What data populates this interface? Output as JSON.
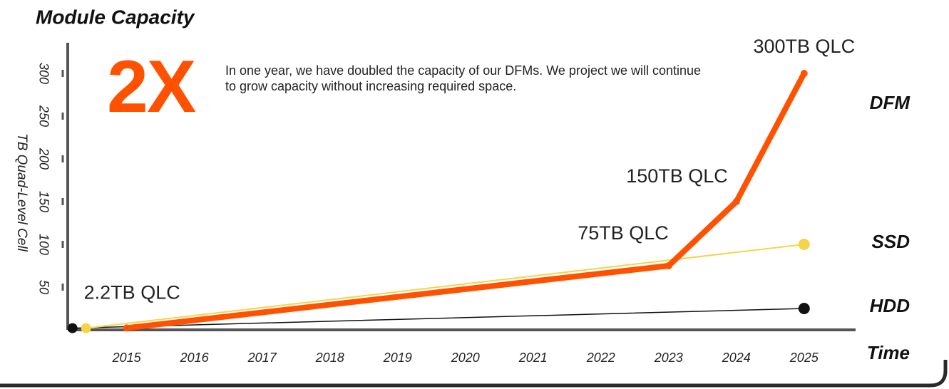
{
  "chart_data": {
    "type": "line",
    "title": "Module Capacity",
    "y_label": "TB Quad-Level Cell",
    "x_label": "Time",
    "callout": {
      "headline": "2X",
      "text": "In one year, we have doubled the capacity of our DFMs. We project we will continue to grow capacity without increasing required space."
    },
    "xlim": [
      2014.13,
      2025.76
    ],
    "xticks": [
      2015,
      2016,
      2017,
      2018,
      2019,
      2020,
      2021,
      2022,
      2023,
      2024,
      2025
    ],
    "ylim": [
      0,
      330
    ],
    "yticks": [
      50,
      100,
      150,
      200,
      250,
      300
    ],
    "series": [
      {
        "name": "HDD",
        "color": "#111111",
        "width": 1.5,
        "x": [
          2014.2,
          2025
        ],
        "values": [
          2,
          25
        ]
      },
      {
        "name": "SSD",
        "color": "#f5d547",
        "width": 2,
        "x": [
          2014.4,
          2025
        ],
        "values": [
          2,
          100
        ]
      },
      {
        "name": "DFM",
        "color": "#ff5100",
        "width": 8,
        "x": [
          2015,
          2023,
          2024,
          2025
        ],
        "values": [
          2.2,
          75,
          150,
          300
        ],
        "value_labels": [
          "2.2TB QLC",
          "75TB QLC",
          "150TB QLC",
          "300TB QLC"
        ]
      }
    ]
  }
}
